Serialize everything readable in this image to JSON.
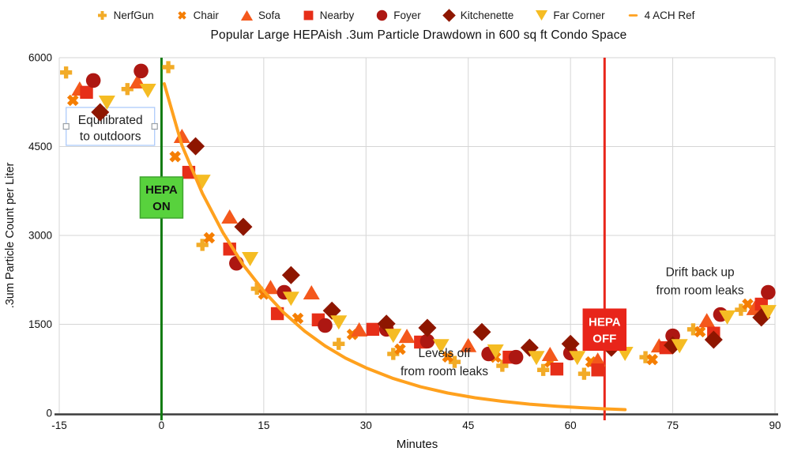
{
  "title": "Popular Large HEPAish .3um Particle Drawdown in 600 sq ft Condo Space",
  "legend": [
    {
      "label": "NerfGun",
      "marker": "plus",
      "color": "#F2AB27"
    },
    {
      "label": "Chair",
      "marker": "x",
      "color": "#F57E02"
    },
    {
      "label": "Sofa",
      "marker": "triangle-up",
      "color": "#F4581C"
    },
    {
      "label": "Nearby",
      "marker": "square",
      "color": "#E62E18"
    },
    {
      "label": "Foyer",
      "marker": "circle",
      "color": "#AD1712"
    },
    {
      "label": "Kitchenette",
      "marker": "diamond",
      "color": "#8E1600"
    },
    {
      "label": "Far Corner",
      "marker": "triangle-down",
      "color": "#F5BC23"
    },
    {
      "label": "4 ACH Ref",
      "marker": "line",
      "color": "#FFA11E"
    }
  ],
  "axes": {
    "x": {
      "label": "Minutes",
      "min": -15,
      "max": 90,
      "ticks": [
        -15,
        0,
        15,
        30,
        45,
        60,
        75,
        90
      ]
    },
    "y": {
      "label": ".3um Particle Count per Liter",
      "min": 0,
      "max": 6000,
      "ticks": [
        0,
        1500,
        3000,
        4500,
        6000
      ]
    }
  },
  "style": {
    "grid_color": "#D5D5D5",
    "axis_color": "#3C3C3C",
    "text_color": "#111111",
    "background": "#FFFFFF"
  },
  "events": [
    {
      "id": "hepa-on",
      "label_lines": [
        "HEPA",
        "ON"
      ],
      "x_minute": 0,
      "line_color": "#117A11",
      "box_color": "#58D23D",
      "box_border": "#3FA52F",
      "text_color": "#111111",
      "box_center_value": 3640
    },
    {
      "id": "hepa-off",
      "label_lines": [
        "HEPA",
        "OFF"
      ],
      "x_minute": 65,
      "line_color": "#E8251A",
      "box_color": "#E8251A",
      "box_border": "#E8251A",
      "text_color": "#FFFFFF",
      "box_center_value": 1410
    }
  ],
  "annotations": {
    "textbox": {
      "lines": [
        "Equilibrated",
        "to outdoors"
      ],
      "anchor_minute": -7.5,
      "anchor_value": 4840,
      "border_color": "#AECBFA",
      "handle_border": "#9AA0A6"
    },
    "notes": [
      {
        "id": "levels-off",
        "lines": [
          "Levels off",
          "from room leaks"
        ],
        "anchor_minute": 41.5,
        "anchor_value": 1000
      },
      {
        "id": "drift-back",
        "lines": [
          "Drift back up",
          "from room leaks"
        ],
        "anchor_minute": 79,
        "anchor_value": 2365
      }
    ]
  },
  "chart_data": {
    "type": "scatter",
    "x_unit": "minutes",
    "y_unit": "particles per liter",
    "series": [
      {
        "name": "NerfGun",
        "marker": "plus",
        "color": "#F2AB27",
        "points": [
          [
            -14,
            5750
          ],
          [
            -5,
            5470
          ],
          [
            1,
            5840
          ],
          [
            6,
            2840
          ],
          [
            14,
            2100
          ],
          [
            26,
            1170
          ],
          [
            34,
            1000
          ],
          [
            43,
            865
          ],
          [
            50,
            800
          ],
          [
            56,
            730
          ],
          [
            62,
            665
          ],
          [
            71,
            945
          ],
          [
            78,
            1415
          ],
          [
            85,
            1745
          ]
        ]
      },
      {
        "name": "Chair",
        "marker": "x",
        "color": "#F57E02",
        "points": [
          [
            -13,
            5280
          ],
          [
            2,
            4330
          ],
          [
            7,
            2960
          ],
          [
            15,
            2010
          ],
          [
            20,
            1600
          ],
          [
            28,
            1330
          ],
          [
            35,
            1080
          ],
          [
            42,
            950
          ],
          [
            49,
            945
          ],
          [
            57,
            865
          ],
          [
            63,
            865
          ],
          [
            72,
            905
          ],
          [
            79,
            1375
          ],
          [
            86,
            1840
          ]
        ]
      },
      {
        "name": "Sofa",
        "marker": "triangle-up",
        "color": "#F4581C",
        "points": [
          [
            -12,
            5480
          ],
          [
            -3.5,
            5600
          ],
          [
            3,
            4680
          ],
          [
            10,
            3320
          ],
          [
            16,
            2130
          ],
          [
            22,
            2040
          ],
          [
            29,
            1415
          ],
          [
            36,
            1305
          ],
          [
            45,
            1150
          ],
          [
            57,
            1000
          ],
          [
            64,
            905
          ],
          [
            73,
            1145
          ],
          [
            80,
            1570
          ],
          [
            87,
            1775
          ]
        ]
      },
      {
        "name": "Nearby",
        "marker": "square",
        "color": "#E62E18",
        "points": [
          [
            -11,
            5415
          ],
          [
            4,
            4065
          ],
          [
            10,
            2770
          ],
          [
            17,
            1680
          ],
          [
            23,
            1575
          ],
          [
            31,
            1415
          ],
          [
            38,
            1200
          ],
          [
            51,
            945
          ],
          [
            58,
            745
          ],
          [
            64,
            730
          ],
          [
            74,
            1105
          ],
          [
            81,
            1350
          ],
          [
            88,
            1840
          ]
        ]
      },
      {
        "name": "Foyer",
        "marker": "circle",
        "color": "#AD1712",
        "points": [
          [
            -10,
            5615
          ],
          [
            -3,
            5775
          ],
          [
            11,
            2530
          ],
          [
            18,
            2040
          ],
          [
            24,
            1480
          ],
          [
            33,
            1415
          ],
          [
            39,
            1215
          ],
          [
            48,
            1000
          ],
          [
            52,
            945
          ],
          [
            60,
            1015
          ],
          [
            75,
            1305
          ],
          [
            82,
            1665
          ],
          [
            89,
            2040
          ]
        ]
      },
      {
        "name": "Kitchenette",
        "marker": "diamond",
        "color": "#8E1600",
        "points": [
          [
            -9,
            5080
          ],
          [
            5,
            4505
          ],
          [
            12,
            3145
          ],
          [
            19,
            2330
          ],
          [
            25,
            1730
          ],
          [
            33,
            1510
          ],
          [
            39,
            1440
          ],
          [
            47,
            1370
          ],
          [
            54,
            1105
          ],
          [
            60,
            1170
          ],
          [
            66,
            1105
          ],
          [
            75,
            1145
          ],
          [
            81,
            1240
          ],
          [
            88,
            1615
          ]
        ]
      },
      {
        "name": "Far Corner",
        "marker": "triangle-down",
        "color": "#F5BC23",
        "points": [
          [
            -8,
            5240
          ],
          [
            -2,
            5440
          ],
          [
            6,
            3905
          ],
          [
            13,
            2600
          ],
          [
            19,
            1930
          ],
          [
            26,
            1530
          ],
          [
            34,
            1305
          ],
          [
            41,
            1130
          ],
          [
            49,
            1040
          ],
          [
            55,
            930
          ],
          [
            61,
            930
          ],
          [
            68,
            1000
          ],
          [
            76,
            1130
          ],
          [
            83,
            1615
          ],
          [
            89,
            1705
          ]
        ]
      }
    ],
    "ref_line": {
      "name": "4 ACH Ref",
      "color": "#FFA11E",
      "points": [
        [
          0.4,
          5560
        ],
        [
          3,
          4520
        ],
        [
          6,
          3710
        ],
        [
          9,
          3050
        ],
        [
          12,
          2500
        ],
        [
          15,
          2060
        ],
        [
          18,
          1690
        ],
        [
          21,
          1385
        ],
        [
          24,
          1135
        ],
        [
          27,
          930
        ],
        [
          30,
          765
        ],
        [
          34,
          585
        ],
        [
          38,
          445
        ],
        [
          42,
          340
        ],
        [
          46,
          260
        ],
        [
          50,
          200
        ],
        [
          54,
          152
        ],
        [
          58,
          116
        ],
        [
          62,
          89
        ],
        [
          65,
          73
        ],
        [
          68,
          60
        ]
      ]
    }
  }
}
